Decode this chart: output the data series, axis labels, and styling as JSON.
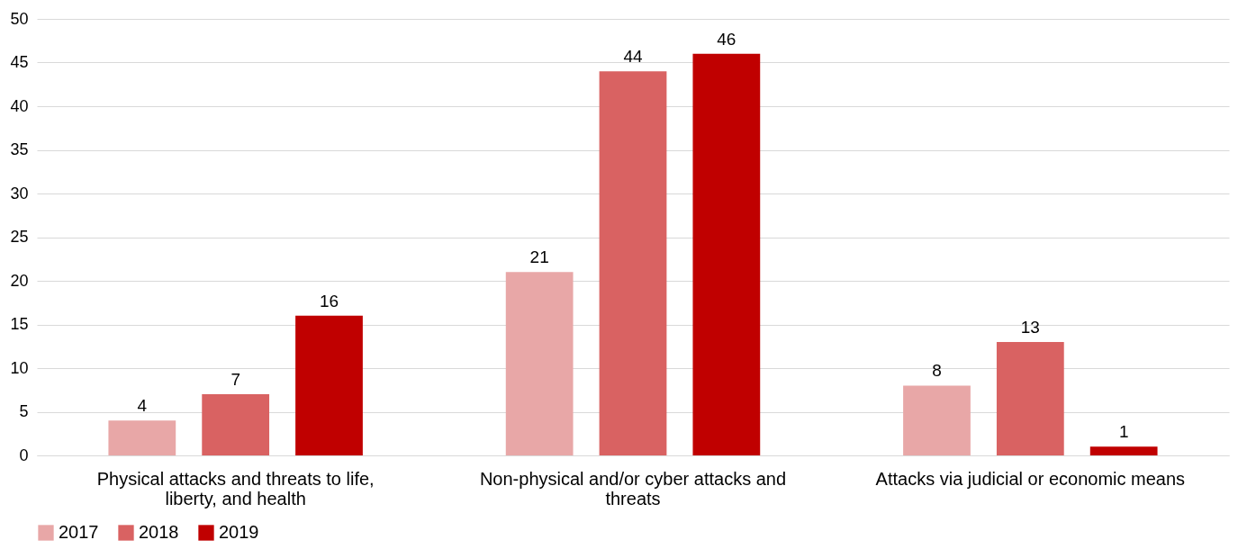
{
  "chart_data": {
    "type": "bar",
    "categories": [
      "Physical attacks and threats to life, liberty, and health",
      "Non-physical and/or cyber attacks and threats",
      "Attacks via judicial or economic means"
    ],
    "series": [
      {
        "name": "2017",
        "color": "#e8a7a7",
        "values": [
          4,
          21,
          8
        ]
      },
      {
        "name": "2018",
        "color": "#d96262",
        "values": [
          7,
          44,
          13
        ]
      },
      {
        "name": "2019",
        "color": "#c00000",
        "values": [
          16,
          46,
          1
        ]
      }
    ],
    "ylim": [
      0,
      50
    ],
    "yticks": [
      0,
      5,
      10,
      15,
      20,
      25,
      30,
      35,
      40,
      45,
      50
    ],
    "grid": "y",
    "legend": "bottom",
    "data_labels": true
  }
}
